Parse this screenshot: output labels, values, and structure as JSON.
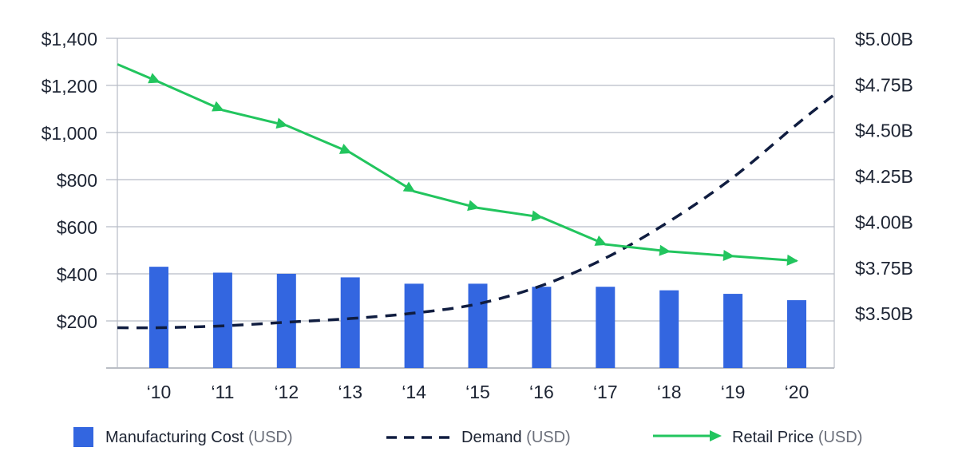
{
  "chart_data": {
    "type": "bar",
    "categories": [
      "‘10",
      "‘11",
      "‘12",
      "‘13",
      "‘14",
      "‘15",
      "‘16",
      "‘17",
      "‘18",
      "‘19",
      "‘20"
    ],
    "y_left": {
      "ylim": [
        0,
        1400
      ],
      "ticks": [
        200,
        400,
        600,
        800,
        1000,
        1200,
        1400
      ],
      "tick_labels": [
        "$200",
        "$400",
        "$600",
        "$800",
        "$1,000",
        "$1,200",
        "$1,400"
      ]
    },
    "y_right": {
      "ylim": [
        3.2,
        5.0
      ],
      "ticks": [
        3.5,
        3.75,
        4.0,
        4.25,
        4.5,
        4.75,
        5.0
      ],
      "tick_labels": [
        "$3.50B",
        "$3.75B",
        "$4.00B",
        "$4.25B",
        "$4.50B",
        "$4.75B",
        "$5.00B"
      ]
    },
    "grid": true,
    "legend_position": "bottom",
    "series": [
      {
        "name": "Manufacturing Cost",
        "unit": "(USD)",
        "kind": "bar",
        "axis": "left",
        "color": "#3366e0",
        "values": [
          430,
          405,
          400,
          385,
          358,
          358,
          345,
          345,
          330,
          315,
          288
        ]
      },
      {
        "name": "Demand",
        "unit": "(USD)",
        "kind": "dashed-line",
        "axis": "right",
        "color": "#101d40",
        "x_start": "‘09.5",
        "x_end": "‘20.6",
        "start_value": 3.42,
        "end_value": 4.71,
        "values": [
          3.42,
          3.43,
          3.45,
          3.47,
          3.5,
          3.55,
          3.65,
          3.8,
          4.0,
          4.24,
          4.53
        ]
      },
      {
        "name": "Retail Price",
        "unit": "(USD)",
        "kind": "arrow-line",
        "axis": "left",
        "color": "#22c55e",
        "x_start": "‘09.5",
        "start_value": 1290,
        "values": [
          1215,
          1095,
          1030,
          915,
          750,
          680,
          640,
          525,
          495,
          475,
          455
        ]
      }
    ]
  }
}
